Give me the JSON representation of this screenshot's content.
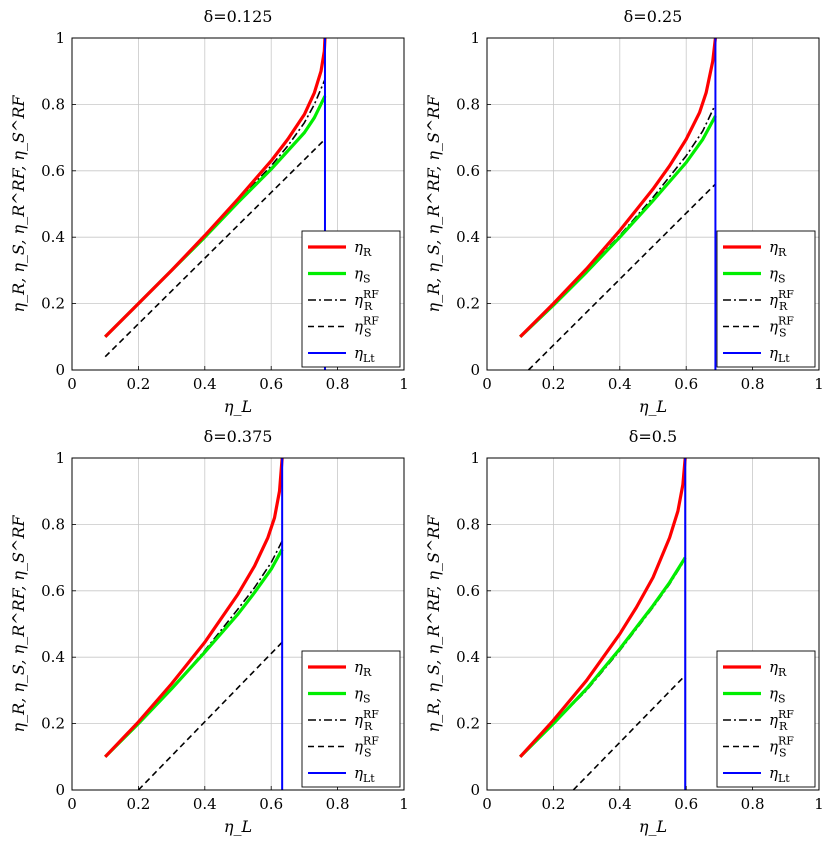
{
  "figure": {
    "panel_count": 4,
    "layout": "2x2 grid"
  },
  "chart_data": [
    {
      "type": "line",
      "title": "δ=0.125",
      "xlabel": "η_L",
      "ylabel": "η_R, η_S, η_R^RF, η_S^RF",
      "xlim": [
        0,
        1
      ],
      "ylim": [
        0,
        1
      ],
      "xticks": [
        0,
        0.2,
        0.4,
        0.6,
        0.8,
        1
      ],
      "yticks": [
        0,
        0.2,
        0.4,
        0.6,
        0.8,
        1
      ],
      "grid": true,
      "legend_position": "bottom-right",
      "series": [
        {
          "name": "η_R",
          "legend_main": "η",
          "legend_sub": "R",
          "legend_sup": "",
          "color": "#ff0000",
          "style": "solid",
          "width": 3.2,
          "x": [
            0.1,
            0.2,
            0.3,
            0.4,
            0.5,
            0.6,
            0.65,
            0.7,
            0.73,
            0.75,
            0.76,
            0.762
          ],
          "y": [
            0.1,
            0.2,
            0.3,
            0.405,
            0.515,
            0.63,
            0.695,
            0.77,
            0.835,
            0.9,
            0.96,
            1.0
          ]
        },
        {
          "name": "η_S",
          "legend_main": "η",
          "legend_sub": "S",
          "legend_sup": "",
          "color": "#00ee00",
          "style": "solid",
          "width": 3.2,
          "x": [
            0.1,
            0.2,
            0.3,
            0.4,
            0.5,
            0.6,
            0.65,
            0.7,
            0.73,
            0.762
          ],
          "y": [
            0.1,
            0.2,
            0.3,
            0.4,
            0.505,
            0.605,
            0.66,
            0.715,
            0.76,
            0.825
          ]
        },
        {
          "name": "η_R^RF",
          "legend_main": "η",
          "legend_sub": "R",
          "legend_sup": "RF",
          "color": "#000000",
          "style": "dashdot",
          "width": 1.6,
          "x": [
            0.1,
            0.2,
            0.3,
            0.4,
            0.5,
            0.6,
            0.65,
            0.7,
            0.73,
            0.762
          ],
          "y": [
            0.1,
            0.2,
            0.3,
            0.4,
            0.51,
            0.615,
            0.675,
            0.745,
            0.8,
            0.875
          ]
        },
        {
          "name": "η_S^RF",
          "legend_main": "η",
          "legend_sub": "S",
          "legend_sup": "RF",
          "color": "#000000",
          "style": "dashed",
          "width": 1.6,
          "x": [
            0.1,
            0.762
          ],
          "y": [
            0.04,
            0.695
          ]
        },
        {
          "name": "η_Lt",
          "legend_main": "η",
          "legend_sub": "Lt",
          "legend_sup": "",
          "color": "#0000ff",
          "style": "solid",
          "width": 2.0,
          "x": [
            0.762,
            0.762
          ],
          "y": [
            0,
            1
          ]
        }
      ]
    },
    {
      "type": "line",
      "title": "δ=0.25",
      "xlabel": "η_L",
      "ylabel": "η_R, η_S, η_R^RF, η_S^RF",
      "xlim": [
        0,
        1
      ],
      "ylim": [
        0,
        1
      ],
      "xticks": [
        0,
        0.2,
        0.4,
        0.6,
        0.8,
        1
      ],
      "yticks": [
        0,
        0.2,
        0.4,
        0.6,
        0.8,
        1
      ],
      "grid": true,
      "legend_position": "bottom-right",
      "series": [
        {
          "name": "η_R",
          "legend_main": "η",
          "legend_sub": "R",
          "legend_sup": "",
          "color": "#ff0000",
          "style": "solid",
          "width": 3.2,
          "x": [
            0.1,
            0.2,
            0.3,
            0.4,
            0.5,
            0.55,
            0.6,
            0.64,
            0.66,
            0.68,
            0.688
          ],
          "y": [
            0.1,
            0.2,
            0.305,
            0.42,
            0.545,
            0.615,
            0.695,
            0.775,
            0.835,
            0.93,
            1.0
          ]
        },
        {
          "name": "η_S",
          "legend_main": "η",
          "legend_sub": "S",
          "legend_sup": "",
          "color": "#00ee00",
          "style": "solid",
          "width": 3.2,
          "x": [
            0.1,
            0.2,
            0.3,
            0.4,
            0.5,
            0.6,
            0.65,
            0.688
          ],
          "y": [
            0.1,
            0.195,
            0.295,
            0.4,
            0.51,
            0.625,
            0.695,
            0.765
          ]
        },
        {
          "name": "η_R^RF",
          "legend_main": "η",
          "legend_sub": "R",
          "legend_sup": "RF",
          "color": "#000000",
          "style": "dashdot",
          "width": 1.6,
          "x": [
            0.1,
            0.2,
            0.3,
            0.4,
            0.5,
            0.6,
            0.65,
            0.688
          ],
          "y": [
            0.1,
            0.2,
            0.3,
            0.405,
            0.52,
            0.645,
            0.72,
            0.8
          ]
        },
        {
          "name": "η_S^RF",
          "legend_main": "η",
          "legend_sub": "S",
          "legend_sup": "RF",
          "color": "#000000",
          "style": "dashed",
          "width": 1.6,
          "x": [
            0.125,
            0.688
          ],
          "y": [
            0,
            0.56
          ]
        },
        {
          "name": "η_Lt",
          "legend_main": "η",
          "legend_sub": "Lt",
          "legend_sup": "",
          "color": "#0000ff",
          "style": "solid",
          "width": 2.0,
          "x": [
            0.688,
            0.688
          ],
          "y": [
            0,
            1
          ]
        }
      ]
    },
    {
      "type": "line",
      "title": "δ=0.375",
      "xlabel": "η_L",
      "ylabel": "η_R, η_S, η_R^RF, η_S^RF",
      "xlim": [
        0,
        1
      ],
      "ylim": [
        0,
        1
      ],
      "xticks": [
        0,
        0.2,
        0.4,
        0.6,
        0.8,
        1
      ],
      "yticks": [
        0,
        0.2,
        0.4,
        0.6,
        0.8,
        1
      ],
      "grid": true,
      "legend_position": "bottom-right",
      "series": [
        {
          "name": "η_R",
          "legend_main": "η",
          "legend_sub": "R",
          "legend_sup": "",
          "color": "#ff0000",
          "style": "solid",
          "width": 3.2,
          "x": [
            0.1,
            0.2,
            0.3,
            0.4,
            0.5,
            0.55,
            0.59,
            0.61,
            0.625,
            0.633
          ],
          "y": [
            0.1,
            0.205,
            0.32,
            0.445,
            0.59,
            0.675,
            0.76,
            0.82,
            0.9,
            1.0
          ]
        },
        {
          "name": "η_S",
          "legend_main": "η",
          "legend_sub": "S",
          "legend_sup": "",
          "color": "#00ee00",
          "style": "solid",
          "width": 3.2,
          "x": [
            0.1,
            0.2,
            0.3,
            0.4,
            0.5,
            0.55,
            0.6,
            0.633
          ],
          "y": [
            0.1,
            0.2,
            0.305,
            0.415,
            0.53,
            0.595,
            0.665,
            0.725
          ]
        },
        {
          "name": "η_R^RF",
          "legend_main": "η",
          "legend_sub": "R",
          "legend_sup": "RF",
          "color": "#000000",
          "style": "dashdot",
          "width": 1.6,
          "x": [
            0.1,
            0.2,
            0.3,
            0.4,
            0.5,
            0.55,
            0.6,
            0.633
          ],
          "y": [
            0.1,
            0.2,
            0.305,
            0.42,
            0.545,
            0.61,
            0.685,
            0.75
          ]
        },
        {
          "name": "η_S^RF",
          "legend_main": "η",
          "legend_sub": "S",
          "legend_sup": "RF",
          "color": "#000000",
          "style": "dashed",
          "width": 1.6,
          "x": [
            0.2,
            0.633
          ],
          "y": [
            0,
            0.445
          ]
        },
        {
          "name": "η_Lt",
          "legend_main": "η",
          "legend_sub": "Lt",
          "legend_sup": "",
          "color": "#0000ff",
          "style": "solid",
          "width": 2.0,
          "x": [
            0.633,
            0.633
          ],
          "y": [
            0,
            1
          ]
        }
      ]
    },
    {
      "type": "line",
      "title": "δ=0.5",
      "xlabel": "η_L",
      "ylabel": "η_R, η_S, η_R^RF, η_S^RF",
      "xlim": [
        0,
        1
      ],
      "ylim": [
        0,
        1
      ],
      "xticks": [
        0,
        0.2,
        0.4,
        0.6,
        0.8,
        1
      ],
      "yticks": [
        0,
        0.2,
        0.4,
        0.6,
        0.8,
        1
      ],
      "grid": true,
      "legend_position": "bottom-right",
      "series": [
        {
          "name": "η_R",
          "legend_main": "η",
          "legend_sub": "R",
          "legend_sup": "",
          "color": "#ff0000",
          "style": "solid",
          "width": 3.2,
          "x": [
            0.1,
            0.2,
            0.3,
            0.4,
            0.45,
            0.5,
            0.55,
            0.575,
            0.59,
            0.597
          ],
          "y": [
            0.1,
            0.21,
            0.33,
            0.47,
            0.55,
            0.64,
            0.76,
            0.84,
            0.92,
            1.0
          ]
        },
        {
          "name": "η_S",
          "legend_main": "η",
          "legend_sub": "S",
          "legend_sup": "",
          "color": "#00ee00",
          "style": "solid",
          "width": 3.2,
          "x": [
            0.1,
            0.2,
            0.3,
            0.4,
            0.5,
            0.55,
            0.597
          ],
          "y": [
            0.1,
            0.2,
            0.305,
            0.425,
            0.555,
            0.625,
            0.7
          ]
        },
        {
          "name": "η_R^RF",
          "legend_main": "η",
          "legend_sub": "R",
          "legend_sup": "RF",
          "color": "#000000",
          "style": "dashdot",
          "width": 1.6,
          "x": [
            0.1,
            0.2,
            0.3,
            0.4,
            0.5,
            0.55,
            0.597
          ],
          "y": [
            0.1,
            0.2,
            0.3,
            0.42,
            0.55,
            0.62,
            0.695
          ]
        },
        {
          "name": "η_S^RF",
          "legend_main": "η",
          "legend_sub": "S",
          "legend_sup": "RF",
          "color": "#000000",
          "style": "dashed",
          "width": 1.6,
          "x": [
            0.26,
            0.597
          ],
          "y": [
            0,
            0.345
          ]
        },
        {
          "name": "η_Lt",
          "legend_main": "η",
          "legend_sub": "Lt",
          "legend_sup": "",
          "color": "#0000ff",
          "style": "solid",
          "width": 2.0,
          "x": [
            0.597,
            0.597
          ],
          "y": [
            0,
            1
          ]
        }
      ]
    }
  ]
}
